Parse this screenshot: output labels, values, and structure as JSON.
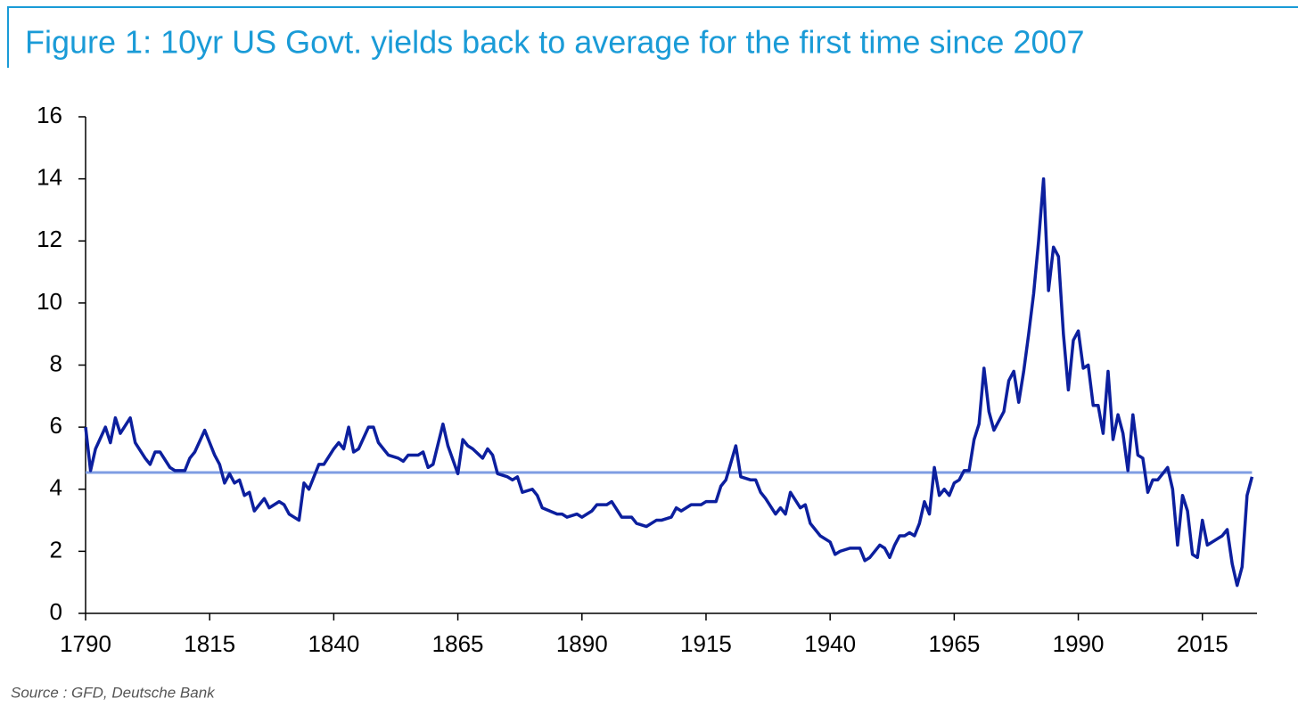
{
  "chart_data": {
    "type": "line",
    "title": "Figure 1: 10yr US Govt. yields back to average for the first time since 2007",
    "source": "Source : GFD, Deutsche Bank",
    "xlim": [
      1790,
      2026
    ],
    "xticks": [
      1790,
      1815,
      1840,
      1865,
      1890,
      1915,
      1940,
      1965,
      1990,
      2015
    ],
    "ylim": [
      0,
      16
    ],
    "yticks": [
      0,
      2,
      4,
      6,
      8,
      10,
      12,
      14,
      16
    ],
    "series": [
      {
        "color": "#0c1f9e",
        "x": [
          1790,
          1791,
          1792,
          1794,
          1795,
          1796,
          1797,
          1799,
          1800,
          1802,
          1803,
          1804,
          1805,
          1807,
          1808,
          1810,
          1811,
          1812,
          1814,
          1816,
          1817,
          1818,
          1819,
          1820,
          1821,
          1822,
          1823,
          1824,
          1826,
          1827,
          1829,
          1830,
          1831,
          1833,
          1834,
          1835,
          1837,
          1838,
          1840,
          1841,
          1842,
          1843,
          1844,
          1845,
          1847,
          1848,
          1849,
          1850,
          1851,
          1853,
          1854,
          1855,
          1857,
          1858,
          1859,
          1860,
          1862,
          1863,
          1865,
          1866,
          1867,
          1868,
          1870,
          1871,
          1872,
          1873,
          1875,
          1876,
          1877,
          1878,
          1880,
          1881,
          1882,
          1885,
          1886,
          1887,
          1889,
          1890,
          1892,
          1893,
          1895,
          1896,
          1898,
          1900,
          1901,
          1903,
          1905,
          1906,
          1908,
          1909,
          1910,
          1912,
          1914,
          1915,
          1917,
          1918,
          1919,
          1921,
          1922,
          1924,
          1925,
          1926,
          1927,
          1929,
          1930,
          1931,
          1932,
          1934,
          1935,
          1936,
          1937,
          1938,
          1940,
          1941,
          1942,
          1944,
          1946,
          1947,
          1948,
          1950,
          1951,
          1952,
          1953,
          1954,
          1955,
          1956,
          1957,
          1958,
          1959,
          1960,
          1961,
          1962,
          1963,
          1964,
          1965,
          1966,
          1967,
          1968,
          1969,
          1970,
          1971,
          1972,
          1973,
          1975,
          1976,
          1977,
          1978,
          1979,
          1980,
          1981,
          1982,
          1983,
          1984,
          1985,
          1986,
          1987,
          1988,
          1989,
          1990,
          1991,
          1992,
          1993,
          1994,
          1995,
          1996,
          1997,
          1998,
          1999,
          2000,
          2001,
          2002,
          2003,
          2004,
          2005,
          2006,
          2008,
          2009,
          2010,
          2011,
          2012,
          2013,
          2014,
          2015,
          2016,
          2018,
          2019,
          2020,
          2021,
          2022,
          2023,
          2024,
          2025
        ],
        "values": [
          6.0,
          4.6,
          5.3,
          6.0,
          5.5,
          6.3,
          5.8,
          6.3,
          5.5,
          5.0,
          4.8,
          5.2,
          5.2,
          4.7,
          4.6,
          4.6,
          5.0,
          5.2,
          5.9,
          5.1,
          4.8,
          4.2,
          4.5,
          4.2,
          4.3,
          3.8,
          3.9,
          3.3,
          3.7,
          3.4,
          3.6,
          3.5,
          3.2,
          3.0,
          4.2,
          4.0,
          4.8,
          4.8,
          5.3,
          5.5,
          5.3,
          6.0,
          5.2,
          5.3,
          6.0,
          6.0,
          5.5,
          5.3,
          5.1,
          5.0,
          4.9,
          5.1,
          5.1,
          5.2,
          4.7,
          4.8,
          6.1,
          5.4,
          4.5,
          5.6,
          5.4,
          5.3,
          5.0,
          5.3,
          5.1,
          4.5,
          4.4,
          4.3,
          4.4,
          3.9,
          4.0,
          3.8,
          3.4,
          3.2,
          3.2,
          3.1,
          3.2,
          3.1,
          3.3,
          3.5,
          3.5,
          3.6,
          3.1,
          3.1,
          2.9,
          2.8,
          3.0,
          3.0,
          3.1,
          3.4,
          3.3,
          3.5,
          3.5,
          3.6,
          3.6,
          4.1,
          4.3,
          5.4,
          4.4,
          4.3,
          4.3,
          3.9,
          3.7,
          3.2,
          3.4,
          3.2,
          3.9,
          3.4,
          3.5,
          2.9,
          2.7,
          2.5,
          2.3,
          1.9,
          2.0,
          2.1,
          2.1,
          1.7,
          1.8,
          2.2,
          2.1,
          1.8,
          2.2,
          2.5,
          2.5,
          2.6,
          2.5,
          2.9,
          3.6,
          3.2,
          4.7,
          3.8,
          4.0,
          3.8,
          4.2,
          4.3,
          4.6,
          4.6,
          5.6,
          6.1,
          7.9,
          6.5,
          5.9,
          6.5,
          7.5,
          7.8,
          6.8,
          7.8,
          9.0,
          10.3,
          12.0,
          14.0,
          10.4,
          11.8,
          11.5,
          9.0,
          7.2,
          8.8,
          9.1,
          7.9,
          8.0,
          6.7,
          6.7,
          5.8,
          7.8,
          5.6,
          6.4,
          5.8,
          4.6,
          6.4,
          5.1,
          5.0,
          3.9,
          4.3,
          4.3,
          4.7,
          4.0,
          2.2,
          3.8,
          3.3,
          1.9,
          1.8,
          3.0,
          2.2,
          2.4,
          2.5,
          2.7,
          1.6,
          0.9,
          1.5,
          3.8,
          4.4
        ]
      },
      {
        "color": "#7f9de3",
        "x": [
          1790,
          2025
        ],
        "values": [
          4.54,
          4.54
        ]
      }
    ]
  }
}
